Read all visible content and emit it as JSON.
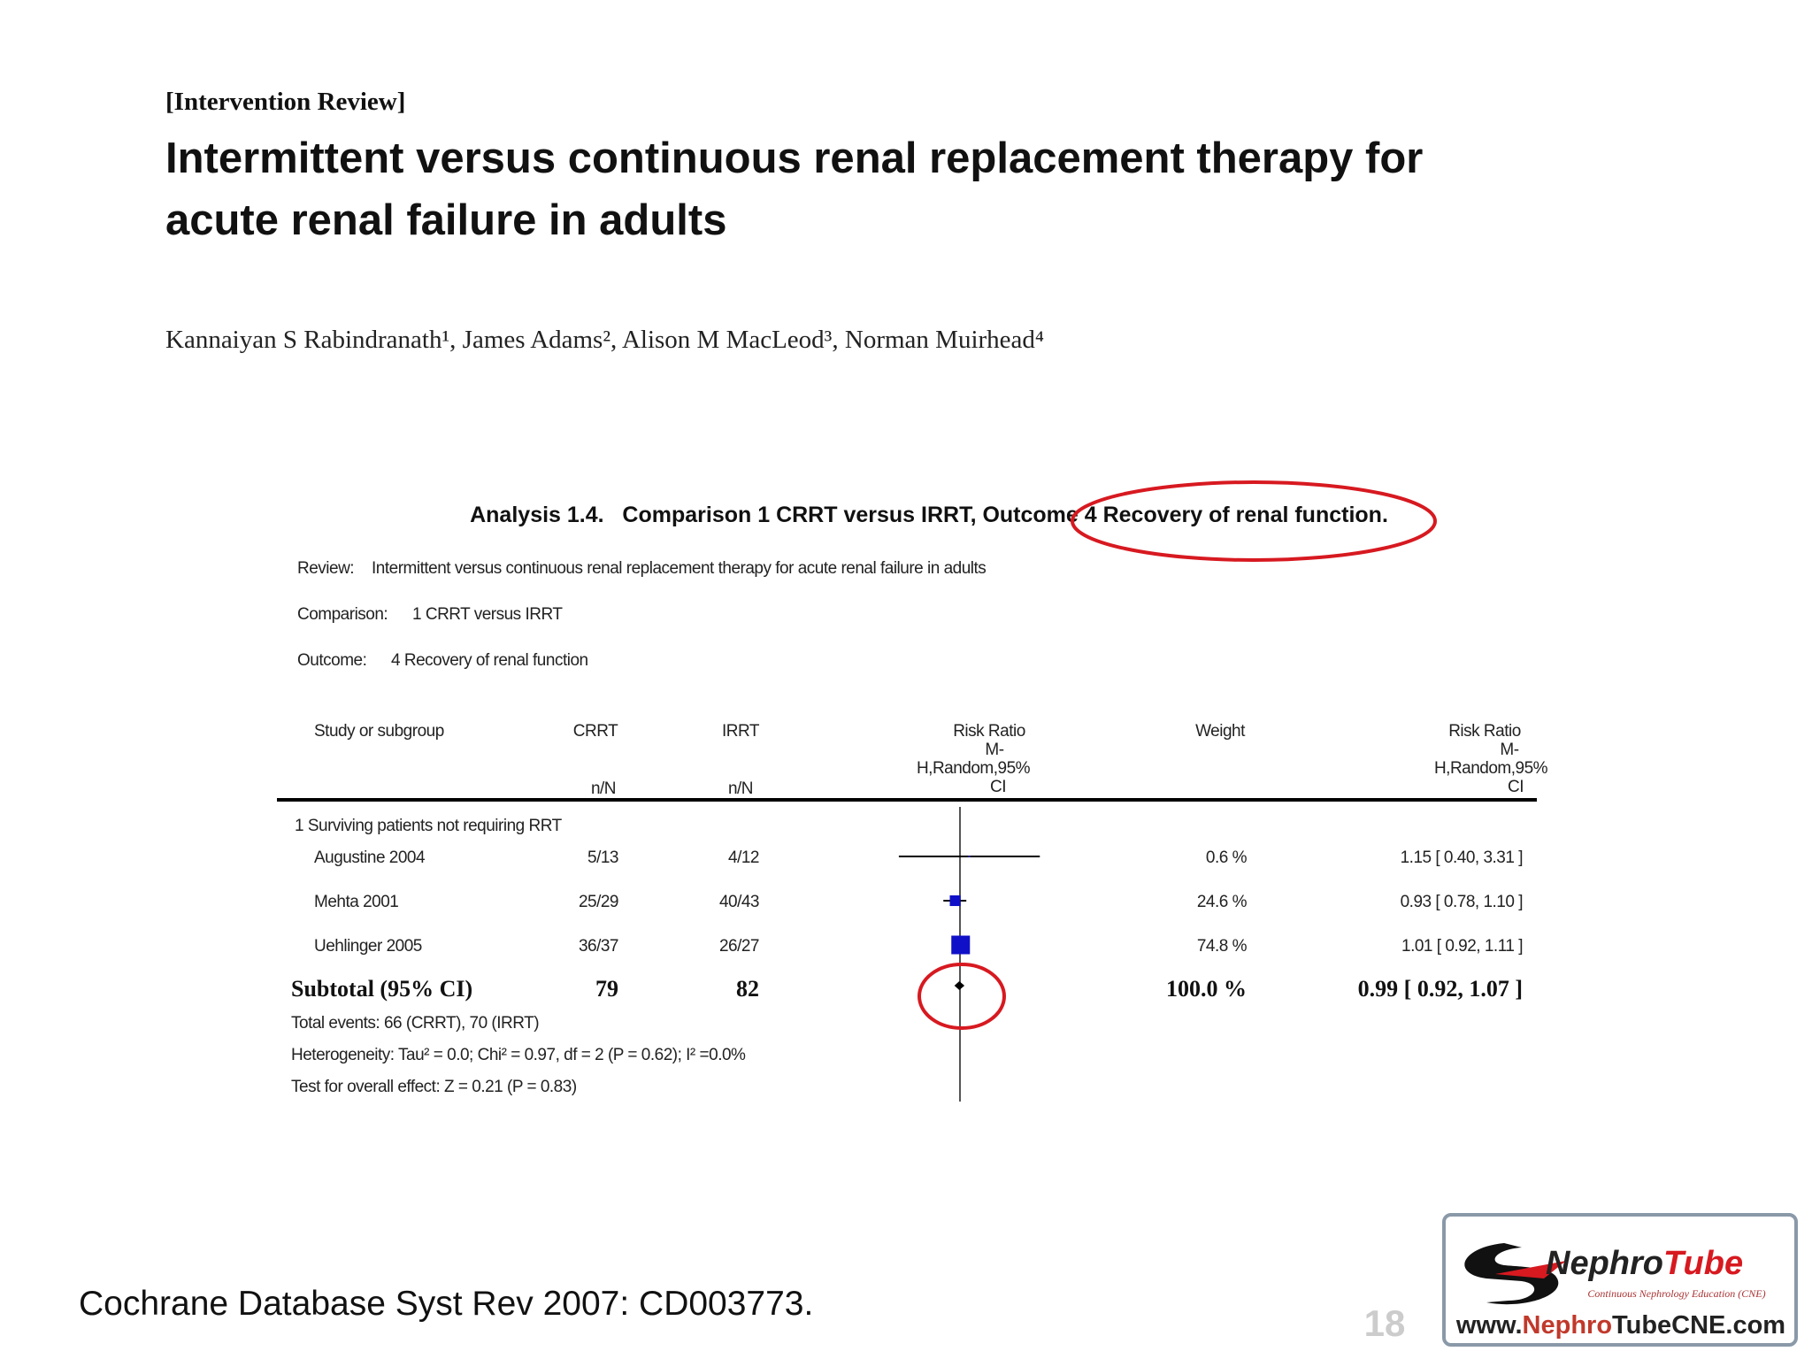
{
  "header": {
    "label": "[Intervention Review]",
    "title_lines": [
      "Intermittent versus continuous renal replacement therapy for",
      "acute renal failure in adults"
    ],
    "authors": "Kannaiyan S Rabindranath¹, James Adams², Alison M MacLeod³, Norman Muirhead⁴"
  },
  "analysis": {
    "title": "Analysis 1.4.   Comparison 1 CRRT versus IRRT, Outcome 4 Recovery of renal function.",
    "meta": [
      {
        "key": "Review:",
        "value": "Intermittent versus continuous renal replacement therapy for acute renal failure in adults"
      },
      {
        "key": "Comparison:",
        "value": "1 CRRT versus IRRT"
      },
      {
        "key": "Outcome:",
        "value": "4 Recovery of renal function"
      }
    ],
    "columns": {
      "study": "Study or subgroup",
      "crrt": "CRRT",
      "irrt": "IRRT",
      "plot": [
        "Risk Ratio",
        "M-",
        "H,Random,95%",
        "CI"
      ],
      "weight": "Weight",
      "ratio": [
        "Risk Ratio",
        "M-",
        "H,Random,95%",
        "CI"
      ],
      "crrt_unit": "n/N",
      "irrt_unit": "n/N"
    },
    "subgroup": "1 Surviving patients not requiring RRT",
    "rows": [
      {
        "study": "Augustine 2004",
        "crrt": "5/13",
        "irrt": "4/12",
        "weight": {
          "value": 0.6,
          "label": "0.6 %"
        },
        "risk_ratio": {
          "value": 1.15,
          "lower": 0.4,
          "upper": 3.31,
          "label": "1.15 [ 0.40, 3.31 ]"
        }
      },
      {
        "study": "Mehta 2001",
        "crrt": "25/29",
        "irrt": "40/43",
        "weight": {
          "value": 24.6,
          "label": "24.6 %"
        },
        "risk_ratio": {
          "value": 0.93,
          "lower": 0.78,
          "upper": 1.1,
          "label": "0.93 [ 0.78, 1.10 ]"
        }
      },
      {
        "study": "Uehlinger 2005",
        "crrt": "36/37",
        "irrt": "26/27",
        "weight": {
          "value": 74.8,
          "label": "74.8 %"
        },
        "risk_ratio": {
          "value": 1.01,
          "lower": 0.92,
          "upper": 1.11,
          "label": "1.01 [ 0.92, 1.11 ]"
        }
      }
    ],
    "subtotal": {
      "label": "Subtotal (95% CI)",
      "crrt": 79,
      "irrt": 82,
      "weight": {
        "value": 100.0,
        "label": "100.0 %"
      },
      "risk_ratio": {
        "value": 0.99,
        "lower": 0.92,
        "upper": 1.07,
        "label": "0.99 [ 0.92, 1.07 ]"
      }
    },
    "notes": [
      "Total events: 66 (CRRT), 70 (IRRT)",
      "Heterogeneity: Tau² = 0.0; Chi² = 0.97, df = 2 (P = 0.62); I² =0.0%",
      "Test for overall effect: Z = 0.21 (P = 0.83)"
    ]
  },
  "footer": {
    "citation": "Cochrane Database Syst Rev 2007: CD003773.",
    "page": "18"
  },
  "logo": {
    "name_parts": [
      "Nephro",
      "Tube"
    ],
    "tagline": "Continuous Nephrology Education (CNE)",
    "url_parts": [
      "www.",
      "Nephro",
      "Tube",
      "CNE.com"
    ]
  }
}
